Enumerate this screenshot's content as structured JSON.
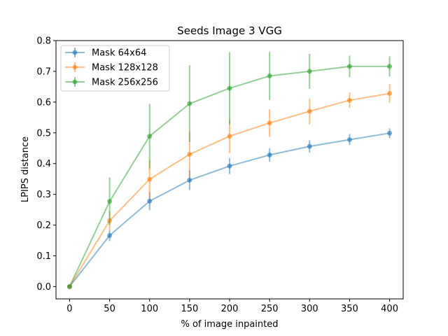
{
  "chart_data": {
    "type": "line",
    "title": "Seeds Image 3 VGG",
    "xlabel": "% of image inpainted",
    "ylabel": "LPIPS distance",
    "xlim": [
      -17,
      417
    ],
    "ylim": [
      -0.04,
      0.8
    ],
    "xticks": [
      0,
      50,
      100,
      150,
      200,
      250,
      300,
      350,
      400
    ],
    "xtick_labels": [
      "0",
      "50",
      "100",
      "150",
      "200",
      "250",
      "300",
      "350",
      "400"
    ],
    "yticks": [
      0.0,
      0.1,
      0.2,
      0.3,
      0.4,
      0.5,
      0.6,
      0.7,
      0.8
    ],
    "ytick_labels": [
      "0.0",
      "0.1",
      "0.2",
      "0.3",
      "0.4",
      "0.5",
      "0.6",
      "0.7",
      "0.8"
    ],
    "grid": false,
    "legend_position": "top-left",
    "x": [
      0,
      50,
      100,
      150,
      200,
      250,
      300,
      350,
      400
    ],
    "series": [
      {
        "name": "Mask 64x64",
        "color": "#1f77b4",
        "values": [
          0.0,
          0.166,
          0.278,
          0.346,
          0.392,
          0.428,
          0.456,
          0.478,
          0.499
        ],
        "errors": [
          0.0,
          0.018,
          0.03,
          0.032,
          0.026,
          0.022,
          0.02,
          0.018,
          0.016
        ]
      },
      {
        "name": "Mask 128x128",
        "color": "#ff7f0e",
        "values": [
          0.0,
          0.214,
          0.349,
          0.43,
          0.489,
          0.532,
          0.57,
          0.606,
          0.628
        ],
        "errors": [
          0.0,
          0.03,
          0.062,
          0.075,
          0.055,
          0.045,
          0.042,
          0.025,
          0.03
        ]
      },
      {
        "name": "Mask 256x256",
        "color": "#2ca02c",
        "values": [
          0.0,
          0.277,
          0.489,
          0.595,
          0.645,
          0.685,
          0.7,
          0.716,
          0.716
        ],
        "errors": [
          0.0,
          0.078,
          0.105,
          0.125,
          0.118,
          0.078,
          0.057,
          0.035,
          0.033
        ]
      }
    ]
  }
}
